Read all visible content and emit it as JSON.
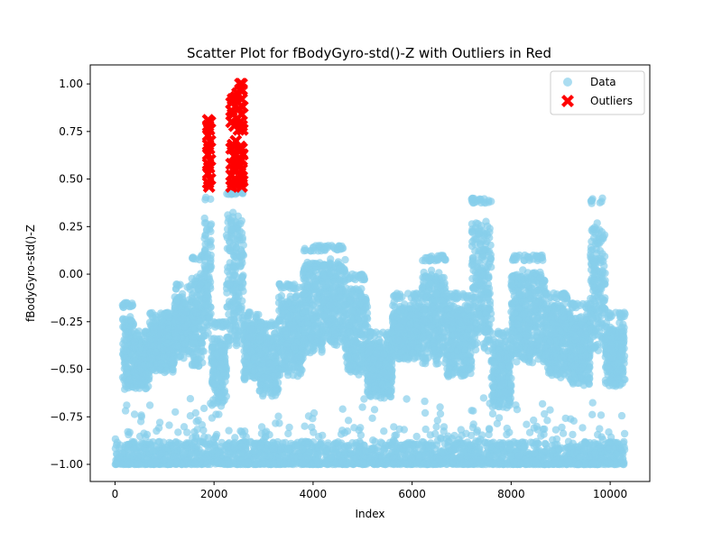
{
  "chart_data": {
    "type": "scatter",
    "title": "Scatter Plot for fBodyGyro-std()-Z with Outliers in Red",
    "xlabel": "Index",
    "ylabel": "fBodyGyro-std()-Z",
    "xlim": [
      -500,
      10800
    ],
    "ylim": [
      -1.09,
      1.1
    ],
    "xticks": [
      0,
      2000,
      4000,
      6000,
      8000,
      10000
    ],
    "yticks": [
      -1.0,
      -0.75,
      -0.5,
      -0.25,
      0.0,
      0.25,
      0.5,
      0.75,
      1.0
    ],
    "xtick_labels": [
      "0",
      "2000",
      "4000",
      "6000",
      "8000",
      "10000"
    ],
    "ytick_labels": [
      "−1.00",
      "−0.75",
      "−0.50",
      "−0.25",
      "0.00",
      "0.25",
      "0.50",
      "0.75",
      "1.00"
    ],
    "grid": false,
    "legend_position": "top-right",
    "n_points": 10299,
    "series": [
      {
        "name": "Data",
        "marker": "circle",
        "color": "#87CEEB",
        "x_range": [
          0,
          10299
        ],
        "band_regions": [
          {
            "x": [
              0,
              10299
            ],
            "y_range": [
              -1.0,
              -0.8
            ],
            "dense": true
          },
          {
            "x": [
              150,
              380
            ],
            "y_range": [
              -0.68,
              -0.15
            ]
          },
          {
            "x": [
              380,
              700
            ],
            "y_range": [
              -0.65,
              -0.3
            ]
          },
          {
            "x": [
              700,
              1200
            ],
            "y_range": [
              -0.55,
              -0.2
            ]
          },
          {
            "x": [
              1200,
              1550
            ],
            "y_range": [
              -0.5,
              -0.05
            ]
          },
          {
            "x": [
              1550,
              1800
            ],
            "y_range": [
              -0.6,
              0.1
            ]
          },
          {
            "x": [
              1800,
              1950
            ],
            "y_range": [
              -0.45,
              0.42
            ]
          },
          {
            "x": [
              1950,
              2250
            ],
            "y_range": [
              -0.75,
              -0.25
            ]
          },
          {
            "x": [
              2250,
              2600
            ],
            "y_range": [
              -0.5,
              0.45
            ]
          },
          {
            "x": [
              2600,
              2900
            ],
            "y_range": [
              -0.6,
              -0.2
            ]
          },
          {
            "x": [
              2900,
              3300
            ],
            "y_range": [
              -0.7,
              -0.25
            ]
          },
          {
            "x": [
              3300,
              3800
            ],
            "y_range": [
              -0.6,
              -0.05
            ]
          },
          {
            "x": [
              3800,
              4200
            ],
            "y_range": [
              -0.5,
              0.15
            ]
          },
          {
            "x": [
              4200,
              4650
            ],
            "y_range": [
              -0.45,
              0.15
            ]
          },
          {
            "x": [
              4650,
              5100
            ],
            "y_range": [
              -0.6,
              0.0
            ]
          },
          {
            "x": [
              5100,
              5600
            ],
            "y_range": [
              -0.7,
              -0.3
            ]
          },
          {
            "x": [
              5600,
              6200
            ],
            "y_range": [
              -0.5,
              -0.1
            ]
          },
          {
            "x": [
              6200,
              6700
            ],
            "y_range": [
              -0.55,
              0.1
            ]
          },
          {
            "x": [
              6700,
              7200
            ],
            "y_range": [
              -0.6,
              -0.1
            ]
          },
          {
            "x": [
              7200,
              7600
            ],
            "y_range": [
              -0.55,
              0.4
            ]
          },
          {
            "x": [
              7600,
              8000
            ],
            "y_range": [
              -0.75,
              -0.3
            ]
          },
          {
            "x": [
              8000,
              8700
            ],
            "y_range": [
              -0.55,
              0.1
            ]
          },
          {
            "x": [
              8700,
              9200
            ],
            "y_range": [
              -0.6,
              -0.1
            ]
          },
          {
            "x": [
              9200,
              9600
            ],
            "y_range": [
              -0.65,
              -0.15
            ]
          },
          {
            "x": [
              9600,
              9900
            ],
            "y_range": [
              -0.55,
              0.4
            ]
          },
          {
            "x": [
              9900,
              10299
            ],
            "y_range": [
              -0.65,
              -0.2
            ]
          }
        ]
      },
      {
        "name": "Outliers",
        "marker": "x",
        "color": "#FF0000",
        "points": [
          [
            1880,
            0.48
          ],
          [
            1880,
            0.53
          ],
          [
            1880,
            0.58
          ],
          [
            1880,
            0.63
          ],
          [
            1880,
            0.68
          ],
          [
            1880,
            0.73
          ],
          [
            1880,
            0.78
          ],
          [
            1880,
            0.81
          ],
          [
            1900,
            0.46
          ],
          [
            1900,
            0.56
          ],
          [
            1900,
            0.66
          ],
          [
            1900,
            0.76
          ],
          [
            1920,
            0.5
          ],
          [
            1920,
            0.6
          ],
          [
            1920,
            0.7
          ],
          [
            1920,
            0.8
          ],
          [
            2350,
            0.46
          ],
          [
            2350,
            0.52
          ],
          [
            2350,
            0.58
          ],
          [
            2350,
            0.66
          ],
          [
            2350,
            0.8
          ],
          [
            2350,
            0.86
          ],
          [
            2350,
            0.9
          ],
          [
            2380,
            0.48
          ],
          [
            2380,
            0.55
          ],
          [
            2380,
            0.68
          ],
          [
            2380,
            0.84
          ],
          [
            2380,
            0.92
          ],
          [
            2410,
            0.5
          ],
          [
            2410,
            0.62
          ],
          [
            2410,
            0.78
          ],
          [
            2440,
            0.47
          ],
          [
            2440,
            0.55
          ],
          [
            2440,
            0.7
          ],
          [
            2440,
            0.93
          ],
          [
            2470,
            0.49
          ],
          [
            2470,
            0.6
          ],
          [
            2470,
            0.82
          ],
          [
            2470,
            0.95
          ],
          [
            2500,
            0.52
          ],
          [
            2500,
            0.65
          ],
          [
            2500,
            0.76
          ],
          [
            2500,
            0.87
          ],
          [
            2530,
            0.48
          ],
          [
            2530,
            0.57
          ],
          [
            2530,
            0.67
          ],
          [
            2530,
            0.8
          ],
          [
            2530,
            0.97
          ],
          [
            2530,
            1.0
          ],
          [
            2560,
            0.46
          ],
          [
            2560,
            0.51
          ],
          [
            2560,
            0.55
          ],
          [
            2560,
            0.6
          ],
          [
            2560,
            0.66
          ],
          [
            2560,
            0.78
          ],
          [
            2560,
            0.84
          ],
          [
            2560,
            0.92
          ],
          [
            2560,
            0.97
          ],
          [
            2560,
            1.0
          ],
          [
            2575,
            0.49
          ],
          [
            2575,
            0.63
          ],
          [
            2575,
            0.76
          ],
          [
            2575,
            0.88
          ]
        ]
      }
    ]
  },
  "legend": {
    "data_label": "Data",
    "outliers_label": "Outliers",
    "data_color": "#87CEEB",
    "outliers_color": "#FF0000"
  }
}
